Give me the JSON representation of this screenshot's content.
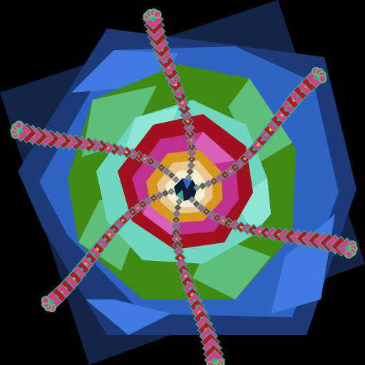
{
  "image": {
    "subject": "fractal-mandala",
    "palette": {
      "background": "#000000",
      "navy": "#142448",
      "deep_blue": "#1d3a78",
      "blue": "#2f63c4",
      "sky_blue": "#3f7be0",
      "green": "#3f8a12",
      "light_green": "#5fbf7a",
      "mint": "#6fd6c0",
      "aqua": "#8fe8d6",
      "crimson": "#a0101e",
      "magenta": "#c03090",
      "pink": "#d860b8",
      "orange": "#d8961c",
      "tan": "#e8c890",
      "cream": "#f6ecd0",
      "arm_red": "#b01828",
      "arm_pink": "#d04088",
      "arm_teal": "#3aa88a",
      "arm_gold": "#d8b040"
    },
    "arm_count": 6
  }
}
